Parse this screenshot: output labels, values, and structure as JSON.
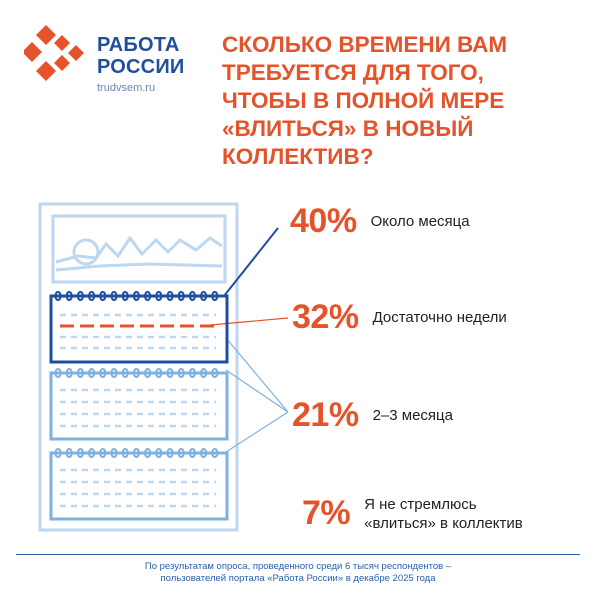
{
  "brand": {
    "name_line1": "РАБОТА",
    "name_line2": "РОССИИ",
    "site": "trudvsem.ru"
  },
  "headline": {
    "lines": [
      "СКОЛЬКО ВРЕМЕНИ ВАМ",
      "ТРЕБУЕТСЯ ДЛЯ ТОГО,",
      "ЧТОБЫ В ПОЛНОЙ МЕРЕ",
      "«ВЛИТЬСЯ» В НОВЫЙ",
      "КОЛЛЕКТИВ?"
    ]
  },
  "chart_data": {
    "type": "table",
    "title": "СКОЛЬКО ВРЕМЕНИ ВАМ ТРЕБУЕТСЯ ДЛЯ ТОГО, ЧТОБЫ В ПОЛНОЙ МЕРЕ «ВЛИТЬСЯ» В НОВЫЙ КОЛЛЕКТИВ?",
    "unit": "%",
    "items": [
      {
        "value": 40,
        "label": "40%",
        "text": "Около месяца"
      },
      {
        "value": 32,
        "label": "32%",
        "text": "Достаточно недели"
      },
      {
        "value": 21,
        "label": "21%",
        "text": "2–3 месяца"
      },
      {
        "value": 7,
        "label": "7%",
        "text": "Я не стремлюсь «влиться» в коллектив"
      }
    ]
  },
  "answers_display": {
    "a4_line1": "Я не стремлюсь",
    "a4_line2": "«влиться» в коллектив"
  },
  "footnote": {
    "line1": "По результатам опроса, проведенного среди 6 тысяч респондентов –",
    "line2": "пользователей портала «Работа России» в декабре 2025 года"
  },
  "colors": {
    "accent_orange": "#e4532a",
    "brand_blue": "#1f4f9e",
    "calendar_light_blue": "#7fb1dc",
    "calendar_pale_blue": "#bcd7ef",
    "text_dark": "#222222"
  },
  "icons": [
    "logo-icon",
    "wall-calendar-icon"
  ]
}
